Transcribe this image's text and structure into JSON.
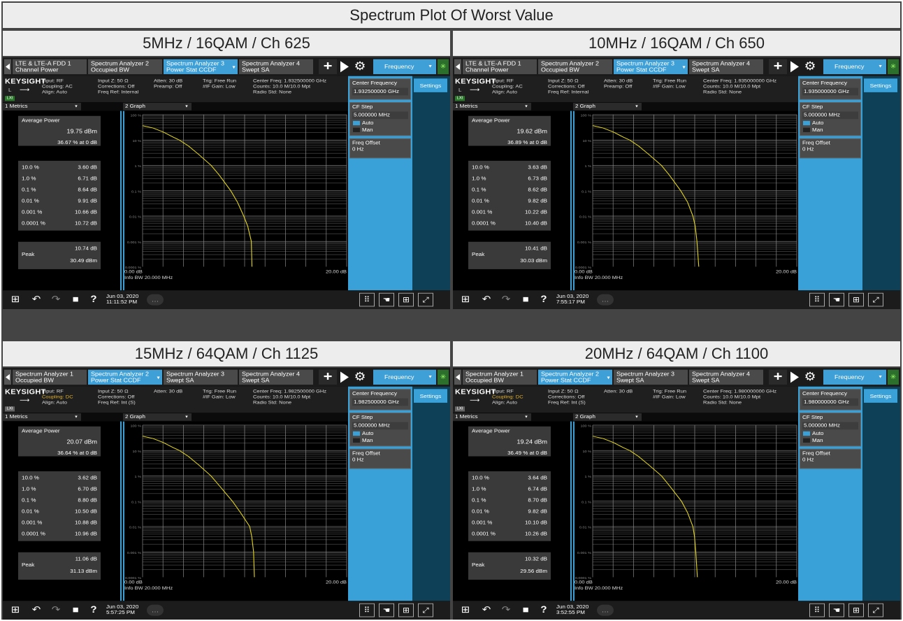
{
  "title": "Spectrum Plot Of Worst Value",
  "screens": [
    {
      "label": "5MHz / 16QAM / Ch 625",
      "tabs": [
        {
          "l1": "LTE & LTE-A FDD 1",
          "l2": "Channel Power"
        },
        {
          "l1": "Spectrum Analyzer 2",
          "l2": "Occupied BW"
        },
        {
          "l1": "Spectrum Analyzer 3",
          "l2": "Power Stat CCDF"
        },
        {
          "l1": "Spectrum Analyzer 4",
          "l2": "Swept SA"
        }
      ],
      "active_tab": 2,
      "logo": "KEYSIGHT",
      "logo_sub": "L",
      "lxi_green": true,
      "info": [
        [
          "Input: RF",
          "Coupling: AC",
          "Align: Auto"
        ],
        [
          "Input Z: 50 Ω",
          "Corrections: Off",
          "Freq Ref: Internal"
        ],
        [
          "Atten: 30 dB",
          "Preamp: Off"
        ],
        [
          "Trig: Free Run",
          "#IF Gain: Low"
        ],
        [
          "Center Freq: 1.932500000 GHz",
          "Counts: 10.0 M/10.0 Mpt",
          "Radio Std: None"
        ]
      ],
      "coupling_dc": false,
      "center_freq": "1.932500000 GHz",
      "avg_power": "19.75 dBm",
      "avg_pct": "36.67 % at 0 dB",
      "metrics": [
        [
          "10.0 %",
          "3.60 dB"
        ],
        [
          "1.0 %",
          "6.71 dB"
        ],
        [
          "0.1 %",
          "8.64 dB"
        ],
        [
          "0.01 %",
          "9.91 dB"
        ],
        [
          "0.001 %",
          "10.66 dB"
        ],
        [
          "0.0001 %",
          "10.72 dB"
        ]
      ],
      "peak_db": "10.74 dB",
      "peak_dbm": "30.49 dBm",
      "date": "Jun 03, 2020",
      "time": "11:11:52 PM"
    },
    {
      "label": "10MHz / 16QAM / Ch 650",
      "tabs": [
        {
          "l1": "LTE & LTE-A FDD 1",
          "l2": "Channel Power"
        },
        {
          "l1": "Spectrum Analyzer 2",
          "l2": "Occupied BW"
        },
        {
          "l1": "Spectrum Analyzer 3",
          "l2": "Power Stat CCDF"
        },
        {
          "l1": "Spectrum Analyzer 4",
          "l2": "Swept SA"
        }
      ],
      "active_tab": 2,
      "logo": "KEYSIGHT",
      "logo_sub": "L",
      "lxi_green": true,
      "info": [
        [
          "Input: RF",
          "Coupling: AC",
          "Align: Auto"
        ],
        [
          "Input Z: 50 Ω",
          "Corrections: Off",
          "Freq Ref: Internal"
        ],
        [
          "Atten: 30 dB",
          "Preamp: Off"
        ],
        [
          "Trig: Free Run",
          "#IF Gain: Low"
        ],
        [
          "Center Freq: 1.935000000 GHz",
          "Counts: 10.0 M/10.0 Mpt",
          "Radio Std: None"
        ]
      ],
      "coupling_dc": false,
      "center_freq": "1.935000000 GHz",
      "avg_power": "19.62 dBm",
      "avg_pct": "36.89 % at 0 dB",
      "metrics": [
        [
          "10.0 %",
          "3.63 dB"
        ],
        [
          "1.0 %",
          "6.73 dB"
        ],
        [
          "0.1 %",
          "8.62 dB"
        ],
        [
          "0.01 %",
          "9.82 dB"
        ],
        [
          "0.001 %",
          "10.22 dB"
        ],
        [
          "0.0001 %",
          "10.40 dB"
        ]
      ],
      "peak_db": "10.41 dB",
      "peak_dbm": "30.03 dBm",
      "date": "Jun 03, 2020",
      "time": "7:55:17 PM"
    },
    {
      "label": "15MHz / 64QAM / Ch 1125",
      "tabs": [
        {
          "l1": "Spectrum Analyzer 1",
          "l2": "Occupied BW"
        },
        {
          "l1": "Spectrum Analyzer 2",
          "l2": "Power Stat CCDF"
        },
        {
          "l1": "Spectrum Analyzer 3",
          "l2": "Swept SA"
        },
        {
          "l1": "Spectrum Analyzer 4",
          "l2": "Swept SA"
        }
      ],
      "active_tab": 1,
      "logo": "KEYSIGHT",
      "logo_sub": "",
      "lxi_green": false,
      "info": [
        [
          "Input: RF",
          "Coupling: DC",
          "Align: Auto"
        ],
        [
          "Input Z: 50 Ω",
          "Corrections: Off",
          "Freq Ref: Int (S)"
        ],
        [
          "Atten: 30 dB"
        ],
        [
          "Trig: Free Run",
          "#IF Gain: Low"
        ],
        [
          "Center Freq: 1.982500000 GHz",
          "Counts: 10.0 M/10.0 Mpt",
          "Radio Std: None"
        ]
      ],
      "coupling_dc": true,
      "center_freq": "1.982500000 GHz",
      "avg_power": "20.07 dBm",
      "avg_pct": "36.64 % at 0 dB",
      "metrics": [
        [
          "10.0 %",
          "3.62 dB"
        ],
        [
          "1.0 %",
          "6.70 dB"
        ],
        [
          "0.1 %",
          "8.80 dB"
        ],
        [
          "0.01 %",
          "10.50 dB"
        ],
        [
          "0.001 %",
          "10.88 dB"
        ],
        [
          "0.0001 %",
          "10.96 dB"
        ]
      ],
      "peak_db": "11.06 dB",
      "peak_dbm": "31.13 dBm",
      "date": "Jun 03, 2020",
      "time": "5:57:25 PM"
    },
    {
      "label": "20MHz / 64QAM / Ch 1100",
      "tabs": [
        {
          "l1": "Spectrum Analyzer 1",
          "l2": "Occupied BW"
        },
        {
          "l1": "Spectrum Analyzer 2",
          "l2": "Power Stat CCDF"
        },
        {
          "l1": "Spectrum Analyzer 3",
          "l2": "Swept SA"
        },
        {
          "l1": "Spectrum Analyzer 4",
          "l2": "Swept SA"
        }
      ],
      "active_tab": 1,
      "logo": "KEYSIGHT",
      "logo_sub": "",
      "lxi_green": false,
      "info": [
        [
          "Input: RF",
          "Coupling: DC",
          "Align: Auto"
        ],
        [
          "Input Z: 50 Ω",
          "Corrections: Off",
          "Freq Ref: Int (S)"
        ],
        [
          "Atten: 30 dB"
        ],
        [
          "Trig: Free Run",
          "#IF Gain: Low"
        ],
        [
          "Center Freq: 1.980000000 GHz",
          "Counts: 10.0 M/10.0 Mpt",
          "Radio Std: None"
        ]
      ],
      "coupling_dc": true,
      "center_freq": "1.980000000 GHz",
      "avg_power": "19.24 dBm",
      "avg_pct": "36.49 % at 0 dB",
      "metrics": [
        [
          "10.0 %",
          "3.64 dB"
        ],
        [
          "1.0 %",
          "6.74 dB"
        ],
        [
          "0.1 %",
          "8.70 dB"
        ],
        [
          "0.01 %",
          "9.82 dB"
        ],
        [
          "0.001 %",
          "10.10 dB"
        ],
        [
          "0.0001 %",
          "10.26 dB"
        ]
      ],
      "peak_db": "10.32 dB",
      "peak_dbm": "29.56 dBm",
      "date": "Jun 03, 2020",
      "time": "3:52:55 PM"
    }
  ],
  "common": {
    "frequency_menu": "Frequency",
    "settings": "Settings",
    "center_frequency_label": "Center Frequency",
    "cf_step_label": "CF Step",
    "cf_step_value": "5.000000 MHz",
    "auto": "Auto",
    "man": "Man",
    "freq_offset_label": "Freq Offset",
    "freq_offset_value": "0 Hz",
    "metrics_dropdown": "1 Metrics",
    "graph_dropdown": "2 Graph",
    "average_power_label": "Average Power",
    "peak_label": "Peak",
    "y_ticks": [
      "100 %",
      "10 %",
      "1 %",
      "0.1 %",
      "0.01 %",
      "0.001 %",
      "0.0001 %"
    ],
    "x_min": "0.00 dB",
    "x_max": "20.00 dB",
    "info_bw": "Info BW 20.000 MHz",
    "lxi": "LXI"
  },
  "colors": {
    "accent": "#3aa0d8",
    "trace": "#e6d81c",
    "coupling_dc": "#e0b030"
  },
  "chart_data": [
    {
      "type": "line",
      "title": "",
      "xlabel": "",
      "ylabel": "",
      "x_unit": "dB",
      "y_scale": "log",
      "xlim": [
        0,
        20
      ],
      "ylim": [
        0.0001,
        100
      ],
      "series": [
        {
          "values_x": [
            0,
            1,
            2,
            3,
            3.6,
            4.5,
            5.5,
            6.71,
            7.5,
            8.64,
            9.3,
            9.91,
            10.3,
            10.66,
            10.72
          ],
          "values_y": [
            36.67,
            30,
            21,
            13,
            10,
            5.8,
            2.7,
            1.0,
            0.42,
            0.1,
            0.035,
            0.01,
            0.004,
            0.001,
            0.0001
          ]
        }
      ]
    },
    {
      "type": "line",
      "title": "",
      "xlabel": "",
      "ylabel": "",
      "x_unit": "dB",
      "y_scale": "log",
      "xlim": [
        0,
        20
      ],
      "ylim": [
        0.0001,
        100
      ],
      "series": [
        {
          "values_x": [
            0,
            1,
            2,
            3,
            3.63,
            4.5,
            5.5,
            6.73,
            7.5,
            8.62,
            9.3,
            9.82,
            10.05,
            10.22,
            10.4
          ],
          "values_y": [
            36.89,
            30,
            21,
            13,
            10,
            5.8,
            2.7,
            1.0,
            0.42,
            0.1,
            0.035,
            0.01,
            0.004,
            0.001,
            0.0001
          ]
        }
      ]
    },
    {
      "type": "line",
      "title": "",
      "xlabel": "",
      "ylabel": "",
      "x_unit": "dB",
      "y_scale": "log",
      "xlim": [
        0,
        20
      ],
      "ylim": [
        0.0001,
        100
      ],
      "series": [
        {
          "values_x": [
            0,
            1,
            2,
            3,
            3.62,
            4.5,
            5.5,
            6.7,
            7.5,
            8.8,
            9.6,
            10.5,
            10.7,
            10.88,
            10.96
          ],
          "values_y": [
            36.64,
            30,
            21,
            13,
            10,
            5.8,
            2.7,
            1.0,
            0.42,
            0.1,
            0.035,
            0.01,
            0.004,
            0.001,
            0.0001
          ]
        }
      ]
    },
    {
      "type": "line",
      "title": "",
      "xlabel": "",
      "ylabel": "",
      "x_unit": "dB",
      "y_scale": "log",
      "xlim": [
        0,
        20
      ],
      "ylim": [
        0.0001,
        100
      ],
      "series": [
        {
          "values_x": [
            0,
            1,
            2,
            3,
            3.64,
            4.5,
            5.5,
            6.74,
            7.5,
            8.7,
            9.3,
            9.82,
            9.98,
            10.1,
            10.26
          ],
          "values_y": [
            36.49,
            30,
            21,
            13,
            10,
            5.8,
            2.7,
            1.0,
            0.42,
            0.1,
            0.035,
            0.01,
            0.004,
            0.001,
            0.0001
          ]
        }
      ]
    }
  ]
}
